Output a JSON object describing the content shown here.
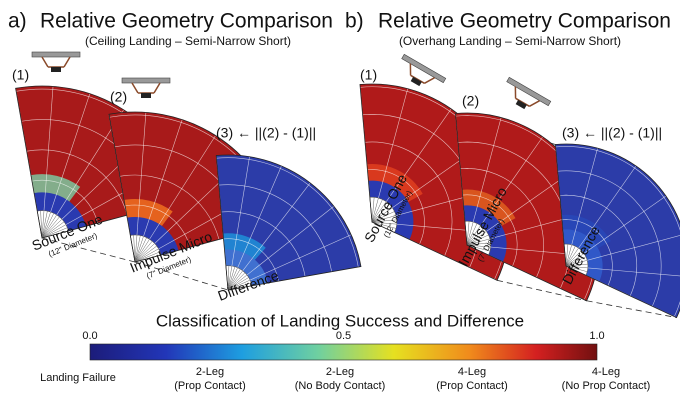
{
  "panels": [
    {
      "letter": "a)",
      "title": "Relative Geometry Comparison",
      "subtitle": "(Ceiling Landing – Semi-Narrow Short)",
      "plots": [
        {
          "index": "(1)",
          "label": "Source One",
          "sublabel": "(12\" Diameter)"
        },
        {
          "index": "(2)",
          "label": "Impulse Micro",
          "sublabel": "(7\" Diameter)"
        },
        {
          "index": "(3) ← ||(2) - (1)||",
          "label": "Difference"
        }
      ]
    },
    {
      "letter": "b)",
      "title": "Relative Geometry Comparison",
      "subtitle": "(Overhang Landing – Semi-Narrow Short)",
      "plots": [
        {
          "index": "(1)",
          "label": "Source One",
          "sublabel": "(12\" Diameter)"
        },
        {
          "index": "(2)",
          "label": "Impulse Micro",
          "sublabel": "(7\" Diameter)"
        },
        {
          "index": "(3) ← ||(2) - (1)||",
          "label": "Difference"
        }
      ]
    }
  ],
  "colorbar": {
    "title": "Classification of Landing Success and Difference",
    "ticks": [
      "0.0",
      "0.5",
      "1.0"
    ],
    "classes": [
      {
        "name": "Landing Failure"
      },
      {
        "name": "2-Leg",
        "detail": "(Prop Contact)"
      },
      {
        "name": "2-Leg",
        "detail": "(No Body Contact)"
      },
      {
        "name": "4-Leg",
        "detail": "(Prop Contact)"
      },
      {
        "name": "4-Leg",
        "detail": "(No Prop Contact)"
      }
    ]
  }
}
